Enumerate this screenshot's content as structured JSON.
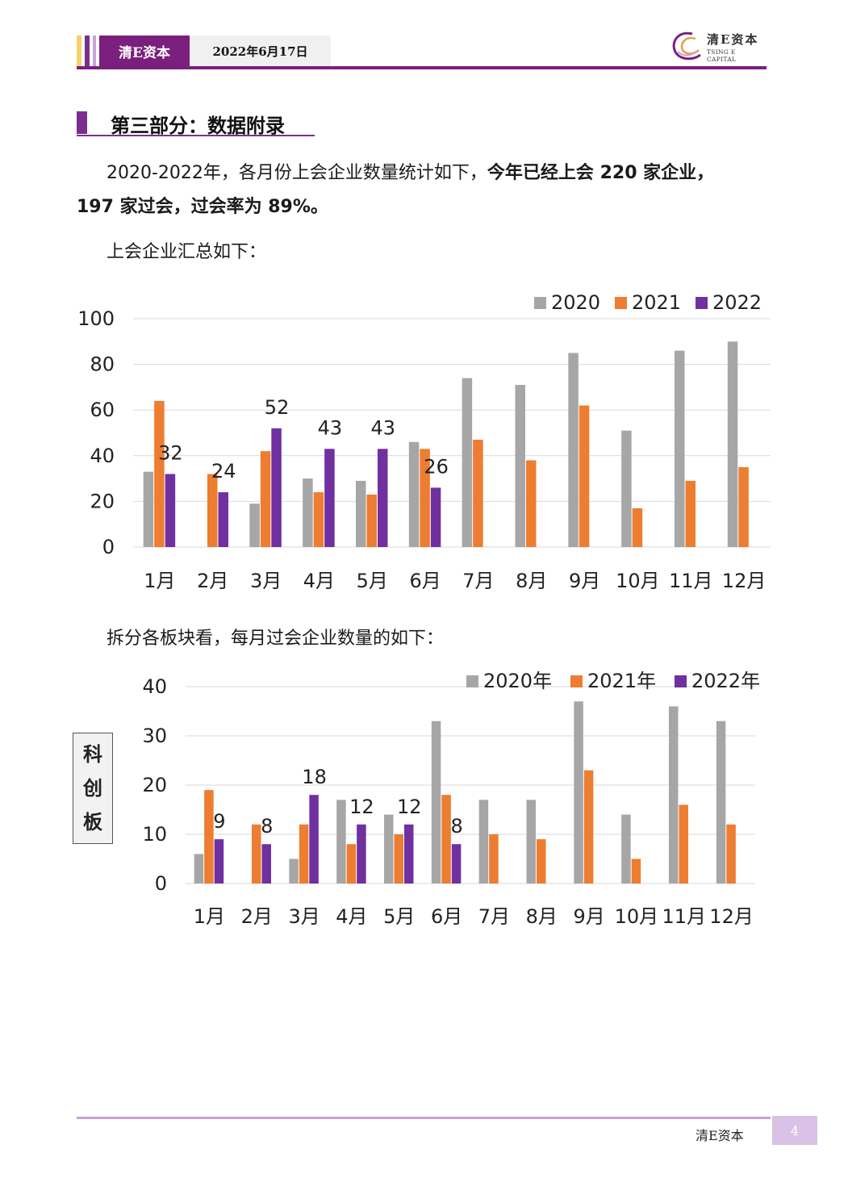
{
  "header": {
    "brand": "清E资本",
    "date": "2022年6月17日",
    "logo_cn": "清E资本",
    "logo_en": "TSING E CAPITAL"
  },
  "section": {
    "title": "第三部分：数据附录"
  },
  "paragraphs": {
    "intro_normal": "2020-2022年，各月份上会企业数量统计如下，",
    "intro_bold_1": "今年已经上会 220 家企业，",
    "intro_bold_2": "197 家过会，过会率为 89%。",
    "summary_label": "上会企业汇总如下：",
    "split_label": "拆分各板块看，每月过会企业数量的如下："
  },
  "side_label": {
    "c1": "科",
    "c2": "创",
    "c3": "板"
  },
  "footer": {
    "brand": "清E资本",
    "page": "4"
  },
  "colors": {
    "s2020": "#a6a6a6",
    "s2021": "#ed7d31",
    "s2022": "#7030a0",
    "brand": "#7a1f7e"
  },
  "chart_data": [
    {
      "type": "bar",
      "categories": [
        "1月",
        "2月",
        "3月",
        "4月",
        "5月",
        "6月",
        "7月",
        "8月",
        "9月",
        "10月",
        "11月",
        "12月"
      ],
      "ylim": [
        0,
        100
      ],
      "yticks": [
        0,
        20,
        40,
        60,
        80,
        100
      ],
      "legend_position": "top-right",
      "grid": true,
      "series": [
        {
          "name": "2020",
          "color": "#a6a6a6",
          "values": [
            33,
            0,
            19,
            30,
            29,
            46,
            74,
            71,
            85,
            51,
            86,
            90
          ]
        },
        {
          "name": "2021",
          "color": "#ed7d31",
          "values": [
            64,
            32,
            42,
            24,
            23,
            43,
            47,
            38,
            62,
            17,
            29,
            35
          ]
        },
        {
          "name": "2022",
          "color": "#7030a0",
          "values": [
            32,
            24,
            52,
            43,
            43,
            26,
            null,
            null,
            null,
            null,
            null,
            null
          ],
          "labels": true
        }
      ]
    },
    {
      "type": "bar",
      "categories": [
        "1月",
        "2月",
        "3月",
        "4月",
        "5月",
        "6月",
        "7月",
        "8月",
        "9月",
        "10月",
        "11月",
        "12月"
      ],
      "ylim": [
        0,
        40
      ],
      "yticks": [
        0,
        10,
        20,
        30,
        40
      ],
      "legend_position": "top-right",
      "grid": true,
      "series": [
        {
          "name": "2020年",
          "color": "#a6a6a6",
          "values": [
            6,
            0,
            5,
            17,
            14,
            33,
            17,
            17,
            37,
            14,
            36,
            33
          ]
        },
        {
          "name": "2021年",
          "color": "#ed7d31",
          "values": [
            19,
            12,
            12,
            8,
            10,
            18,
            10,
            9,
            23,
            5,
            16,
            12
          ]
        },
        {
          "name": "2022年",
          "color": "#7030a0",
          "values": [
            9,
            8,
            18,
            12,
            12,
            8,
            null,
            null,
            null,
            null,
            null,
            null
          ],
          "labels": true
        }
      ]
    }
  ]
}
